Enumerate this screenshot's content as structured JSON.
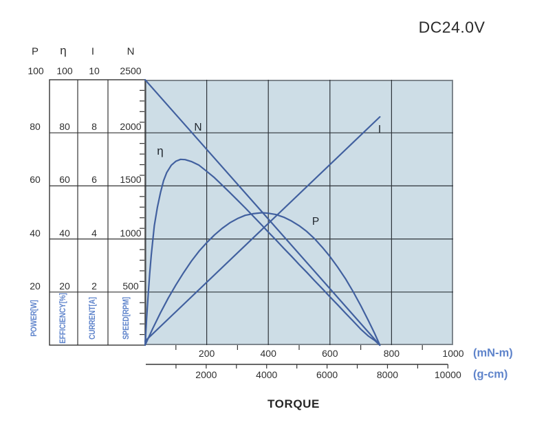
{
  "title": "DC24.0V",
  "x_axis_title": "TORQUE",
  "colors": {
    "curve": "#41609f",
    "plot_background": "#cddde6",
    "grid": "#2d3339",
    "plot_border": "#7d858c",
    "table_line": "#333333",
    "blue_label": "#5f84cb",
    "text": "#2b2b2b"
  },
  "left_axes": {
    "columns": [
      {
        "symbol": "P",
        "name": "POWER[W]",
        "top_value": "100",
        "row_values": [
          "80",
          "60",
          "40",
          "20"
        ]
      },
      {
        "symbol": "η",
        "name": "EFFICIENCY[%]",
        "top_value": "100",
        "row_values": [
          "80",
          "60",
          "40",
          "20"
        ]
      },
      {
        "symbol": "I",
        "name": "CURRENT[A]",
        "top_value": "10",
        "row_values": [
          "8",
          "6",
          "4",
          "2"
        ]
      },
      {
        "symbol": "N",
        "name": "SPEED[RPM]",
        "top_value": "2500",
        "row_values": [
          "2000",
          "1500",
          "1000",
          "500"
        ]
      }
    ]
  },
  "x_axes": {
    "mnm": {
      "unit": "(mN-m)",
      "labels": [
        "200",
        "400",
        "600",
        "800",
        "1000"
      ],
      "values": [
        200,
        400,
        600,
        800,
        1000
      ],
      "minor_ticks": [
        100,
        300,
        500,
        700,
        900
      ],
      "max": 1000
    },
    "gcm": {
      "unit": "(g-cm)",
      "labels": [
        "2000",
        "4000",
        "6000",
        "8000",
        "10000"
      ],
      "values": [
        2000,
        4000,
        6000,
        8000,
        10000
      ],
      "tick_step": 1000,
      "max": 10000
    }
  },
  "chart_data": {
    "type": "line",
    "title": "DC24.0V",
    "xlabel": "TORQUE",
    "x_units": [
      "mN-m",
      "g-cm"
    ],
    "x_range_mnm": [
      0,
      1000
    ],
    "grid": true,
    "grid_x_mnm": [
      200,
      400,
      600,
      800
    ],
    "grid_y_rpm": [
      2000,
      1500,
      1000,
      500
    ],
    "axis_maxima": {
      "P_W": 100,
      "eta_pct": 100,
      "I_A": 10,
      "N_rpm": 2500
    },
    "no_load_speed_rpm": 2500,
    "no_load_current_A": 0.15,
    "stall_torque_mnm": 762,
    "stall_current_A": 8.6,
    "max_power_W": 50,
    "max_power_at_mnm": 380,
    "max_efficiency_pct": 70,
    "max_efficiency_at_mnm": 115,
    "series": [
      {
        "name": "N",
        "label": "N",
        "axis": "SPEED[RPM]",
        "axis_max": 2500,
        "points": [
          [
            0,
            2500
          ],
          [
            762,
            0
          ]
        ]
      },
      {
        "name": "I",
        "label": "I",
        "axis": "CURRENT[A]",
        "axis_max": 10,
        "points": [
          [
            0,
            0.15
          ],
          [
            762,
            8.6
          ]
        ]
      },
      {
        "name": "P",
        "label": "P",
        "axis": "POWER[W]",
        "axis_max": 100,
        "points": [
          [
            0,
            0
          ],
          [
            25,
            6.3
          ],
          [
            50,
            12.2
          ],
          [
            75,
            17.7
          ],
          [
            100,
            22.7
          ],
          [
            125,
            27.3
          ],
          [
            150,
            31.6
          ],
          [
            175,
            35.4
          ],
          [
            200,
            38.6
          ],
          [
            225,
            41.5
          ],
          [
            250,
            44.0
          ],
          [
            275,
            46.1
          ],
          [
            300,
            47.7
          ],
          [
            325,
            48.9
          ],
          [
            350,
            49.5
          ],
          [
            380,
            49.9
          ],
          [
            400,
            49.7
          ],
          [
            425,
            49.2
          ],
          [
            450,
            48.2
          ],
          [
            475,
            46.8
          ],
          [
            500,
            45.0
          ],
          [
            525,
            42.8
          ],
          [
            550,
            40.1
          ],
          [
            575,
            36.9
          ],
          [
            600,
            33.4
          ],
          [
            625,
            29.4
          ],
          [
            650,
            25.1
          ],
          [
            675,
            20.2
          ],
          [
            700,
            14.9
          ],
          [
            725,
            9.2
          ],
          [
            745,
            4.4
          ],
          [
            762,
            0
          ]
        ]
      },
      {
        "name": "eta",
        "label": "η",
        "axis": "EFFICIENCY[%]",
        "axis_max": 100,
        "points": [
          [
            0,
            0
          ],
          [
            5,
            10
          ],
          [
            10,
            19
          ],
          [
            15,
            27
          ],
          [
            20,
            34
          ],
          [
            30,
            45
          ],
          [
            40,
            52
          ],
          [
            50,
            57.5
          ],
          [
            60,
            62
          ],
          [
            70,
            65
          ],
          [
            85,
            67.8
          ],
          [
            100,
            69.3
          ],
          [
            115,
            70
          ],
          [
            130,
            69.9
          ],
          [
            150,
            69.2
          ],
          [
            175,
            67.8
          ],
          [
            200,
            65.5
          ],
          [
            225,
            63.1
          ],
          [
            250,
            60.3
          ],
          [
            275,
            57.5
          ],
          [
            300,
            54.6
          ],
          [
            325,
            51.7
          ],
          [
            350,
            48.7
          ],
          [
            375,
            45.7
          ],
          [
            400,
            42.6
          ],
          [
            425,
            39.6
          ],
          [
            450,
            36.5
          ],
          [
            475,
            33.5
          ],
          [
            500,
            30.4
          ],
          [
            525,
            27.4
          ],
          [
            550,
            24.3
          ],
          [
            575,
            21.3
          ],
          [
            600,
            18.2
          ],
          [
            625,
            15.2
          ],
          [
            650,
            12.1
          ],
          [
            675,
            9.1
          ],
          [
            700,
            6.0
          ],
          [
            725,
            3.4
          ],
          [
            745,
            1.8
          ],
          [
            762,
            0
          ]
        ]
      }
    ]
  }
}
